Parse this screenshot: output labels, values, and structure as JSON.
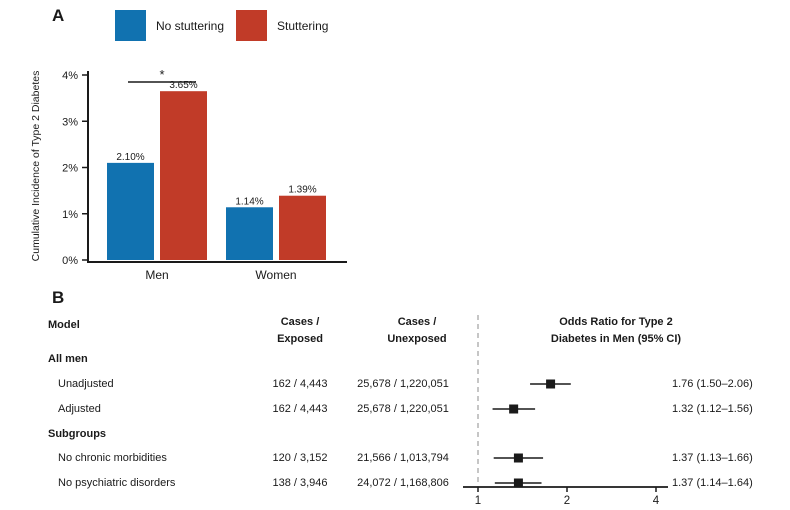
{
  "panels": {
    "a": {
      "label": "A",
      "legend": [
        {
          "label": "No stuttering",
          "color": "#1172b0"
        },
        {
          "label": "Stuttering",
          "color": "#c13b28"
        }
      ]
    },
    "b": {
      "label": "B"
    }
  },
  "colors": {
    "no_stuttering": "#1172b0",
    "stuttering": "#c13b28",
    "text": "#1a1a1a",
    "axis": "#1a1a1a",
    "ref_line": "#c6c6c6"
  },
  "chart_data": [
    {
      "type": "bar",
      "title": "",
      "xlabel": "",
      "ylabel": "Cumulative Incidence of Type 2 Diabetes",
      "categories": [
        "Men",
        "Women"
      ],
      "series": [
        {
          "name": "No stuttering",
          "color": "#1172b0",
          "values": [
            2.1,
            1.14
          ],
          "value_labels": [
            "2.10%",
            "1.14%"
          ]
        },
        {
          "name": "Stuttering",
          "color": "#c13b28",
          "values": [
            3.65,
            1.39
          ],
          "value_labels": [
            "3.65%",
            "1.39%"
          ]
        }
      ],
      "ylim": [
        0,
        4
      ],
      "yticks": [
        {
          "v": 0,
          "label": "0%"
        },
        {
          "v": 1,
          "label": "1%"
        },
        {
          "v": 2,
          "label": "2%"
        },
        {
          "v": 3,
          "label": "3%"
        },
        {
          "v": 4,
          "label": "4%"
        }
      ],
      "legend_position": "top",
      "significance": {
        "category": "Men",
        "symbol": "*"
      }
    },
    {
      "type": "forest",
      "xscale": "log2",
      "ref_line": 1,
      "xticks": [
        {
          "v": 1,
          "label": "1"
        },
        {
          "v": 2,
          "label": "2"
        },
        {
          "v": 4,
          "label": "4"
        }
      ],
      "headers": {
        "model": "Model",
        "cases_exposed": [
          "Cases /",
          "Exposed"
        ],
        "cases_unexposed": [
          "Cases /",
          "Unexposed"
        ],
        "or": [
          "Odds Ratio for Type 2",
          "Diabetes in Men (95% CI)"
        ]
      },
      "rows": [
        {
          "kind": "section",
          "label": "All men"
        },
        {
          "kind": "data",
          "label": "Unadjusted",
          "cases_exposed": "162 / 4,443",
          "cases_unexposed": "25,678 / 1,220,051",
          "or": 1.76,
          "ci_low": 1.5,
          "ci_high": 2.06,
          "or_text": "1.76 (1.50–2.06)"
        },
        {
          "kind": "data",
          "label": "Adjusted",
          "cases_exposed": "162 / 4,443",
          "cases_unexposed": "25,678 / 1,220,051",
          "or": 1.32,
          "ci_low": 1.12,
          "ci_high": 1.56,
          "or_text": "1.32 (1.12–1.56)"
        },
        {
          "kind": "section",
          "label": "Subgroups"
        },
        {
          "kind": "data",
          "label": "No chronic morbidities",
          "cases_exposed": "120 / 3,152",
          "cases_unexposed": "21,566 / 1,013,794",
          "or": 1.37,
          "ci_low": 1.13,
          "ci_high": 1.66,
          "or_text": "1.37 (1.13–1.66)"
        },
        {
          "kind": "data",
          "label": "No psychiatric disorders",
          "cases_exposed": "138 / 3,946",
          "cases_unexposed": "24,072 / 1,168,806",
          "or": 1.37,
          "ci_low": 1.14,
          "ci_high": 1.64,
          "or_text": "1.37 (1.14–1.64)"
        }
      ]
    }
  ]
}
